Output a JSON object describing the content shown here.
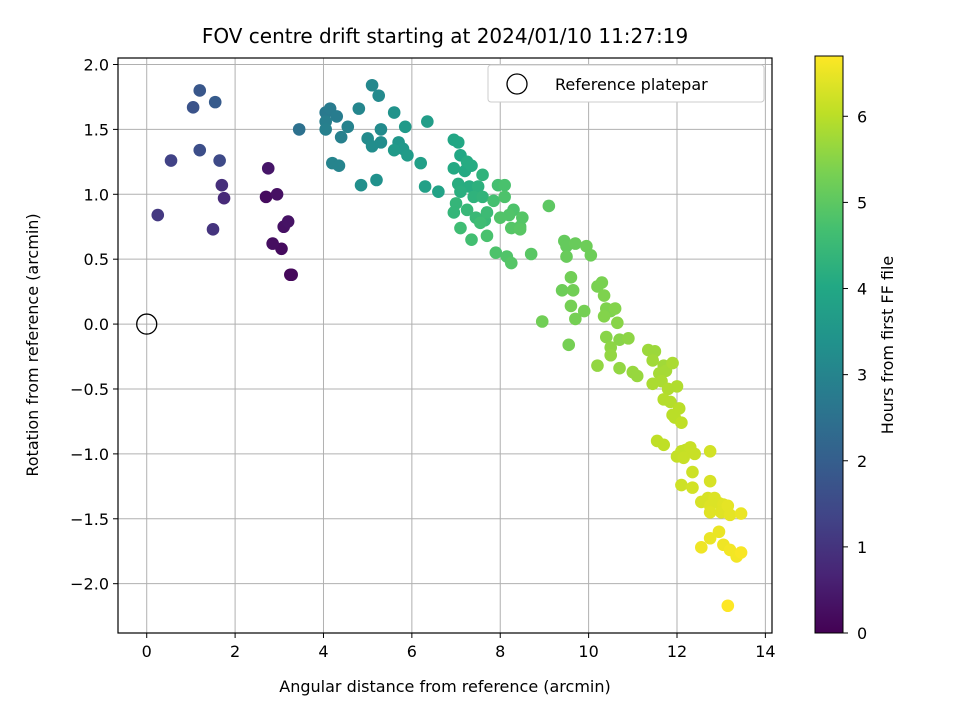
{
  "chart_data": {
    "type": "scatter",
    "title": "FOV centre drift starting at 2024/01/10 11:27:19",
    "xlabel": "Angular distance from reference (arcmin)",
    "ylabel": "Rotation from reference (arcmin)",
    "xlim": [
      -0.65,
      14.15
    ],
    "ylim": [
      -2.38,
      2.05
    ],
    "x_ticks": [
      0,
      2,
      4,
      6,
      8,
      10,
      12,
      14
    ],
    "y_ticks": [
      -2.0,
      -1.5,
      -1.0,
      -0.5,
      0.0,
      0.5,
      1.0,
      1.5,
      2.0
    ],
    "x_tick_labels": [
      "0",
      "2",
      "4",
      "6",
      "8",
      "10",
      "12",
      "14"
    ],
    "y_tick_labels": [
      "−2.0",
      "−1.5",
      "−1.0",
      "−0.5",
      "0.0",
      "0.5",
      "1.0",
      "1.5",
      "2.0"
    ],
    "grid": true,
    "legend": {
      "label": "Reference platepar",
      "placement": "top-right"
    },
    "reference_point": {
      "x": 0,
      "y": 0
    },
    "colorbar": {
      "label": "Hours from first FF file",
      "colormap": "viridis",
      "range": [
        0,
        6.7
      ],
      "ticks": [
        0,
        1,
        2,
        3,
        4,
        5,
        6
      ],
      "tick_labels": [
        "0",
        "1",
        "2",
        "3",
        "4",
        "5",
        "6"
      ]
    },
    "points": [
      [
        3.25,
        0.38,
        0.1
      ],
      [
        3.28,
        0.38,
        0.15
      ],
      [
        3.05,
        0.58,
        0.2
      ],
      [
        2.85,
        0.62,
        0.25
      ],
      [
        3.1,
        0.75,
        0.3
      ],
      [
        3.2,
        0.79,
        0.35
      ],
      [
        2.7,
        0.98,
        0.2
      ],
      [
        2.95,
        1.0,
        0.3
      ],
      [
        2.75,
        1.2,
        0.4
      ],
      [
        1.75,
        0.97,
        0.8
      ],
      [
        1.7,
        1.07,
        0.9
      ],
      [
        1.5,
        0.73,
        1.0
      ],
      [
        0.25,
        0.84,
        1.1
      ],
      [
        0.55,
        1.26,
        1.3
      ],
      [
        1.65,
        1.26,
        1.5
      ],
      [
        1.2,
        1.34,
        1.6
      ],
      [
        1.05,
        1.67,
        1.7
      ],
      [
        1.2,
        1.8,
        1.8
      ],
      [
        1.55,
        1.71,
        1.9
      ],
      [
        3.45,
        1.5,
        2.5
      ],
      [
        4.05,
        1.63,
        2.7
      ],
      [
        4.15,
        1.66,
        2.75
      ],
      [
        4.3,
        1.6,
        2.8
      ],
      [
        4.05,
        1.56,
        2.85
      ],
      [
        4.05,
        1.5,
        2.9
      ],
      [
        4.4,
        1.44,
        2.9
      ],
      [
        4.55,
        1.52,
        2.95
      ],
      [
        4.2,
        1.24,
        3.0
      ],
      [
        4.35,
        1.22,
        3.0
      ],
      [
        4.8,
        1.66,
        3.05
      ],
      [
        5.1,
        1.84,
        3.1
      ],
      [
        5.25,
        1.76,
        3.15
      ],
      [
        5.0,
        1.43,
        3.2
      ],
      [
        5.3,
        1.5,
        3.2
      ],
      [
        5.3,
        1.4,
        3.25
      ],
      [
        5.1,
        1.37,
        3.25
      ],
      [
        4.85,
        1.07,
        3.3
      ],
      [
        5.2,
        1.11,
        3.35
      ],
      [
        5.6,
        1.63,
        3.4
      ],
      [
        5.7,
        1.4,
        3.5
      ],
      [
        5.8,
        1.35,
        3.55
      ],
      [
        5.6,
        1.34,
        3.6
      ],
      [
        5.85,
        1.52,
        3.6
      ],
      [
        5.9,
        1.3,
        3.65
      ],
      [
        6.35,
        1.56,
        3.7
      ],
      [
        6.2,
        1.24,
        3.75
      ],
      [
        6.3,
        1.06,
        3.8
      ],
      [
        6.6,
        1.02,
        3.85
      ],
      [
        6.95,
        1.42,
        3.95
      ],
      [
        7.05,
        1.4,
        4.0
      ],
      [
        7.1,
        1.3,
        4.0
      ],
      [
        6.95,
        1.2,
        4.05
      ],
      [
        7.2,
        1.18,
        4.05
      ],
      [
        7.25,
        1.25,
        4.1
      ],
      [
        7.35,
        1.22,
        4.1
      ],
      [
        7.05,
        1.08,
        4.15
      ],
      [
        7.3,
        1.06,
        4.15
      ],
      [
        7.1,
        1.02,
        4.2
      ],
      [
        7.5,
        1.06,
        4.25
      ],
      [
        7.6,
        1.15,
        4.3
      ],
      [
        7.4,
        0.98,
        4.3
      ],
      [
        7.6,
        0.98,
        4.35
      ],
      [
        7.0,
        0.93,
        4.4
      ],
      [
        6.95,
        0.86,
        4.4
      ],
      [
        7.25,
        0.88,
        4.45
      ],
      [
        7.45,
        0.82,
        4.5
      ],
      [
        7.65,
        0.8,
        4.5
      ],
      [
        7.7,
        0.86,
        4.55
      ],
      [
        7.55,
        0.78,
        4.6
      ],
      [
        7.1,
        0.74,
        4.6
      ],
      [
        7.35,
        0.65,
        4.65
      ],
      [
        7.85,
        0.95,
        4.7
      ],
      [
        7.95,
        1.07,
        4.7
      ],
      [
        8.1,
        1.07,
        4.75
      ],
      [
        8.1,
        0.98,
        4.8
      ],
      [
        8.3,
        0.88,
        4.8
      ],
      [
        8.2,
        0.84,
        4.85
      ],
      [
        8.0,
        0.82,
        4.85
      ],
      [
        8.45,
        0.75,
        4.9
      ],
      [
        8.25,
        0.74,
        4.9
      ],
      [
        8.5,
        0.82,
        4.9
      ],
      [
        7.7,
        0.68,
        4.75
      ],
      [
        7.9,
        0.55,
        4.8
      ],
      [
        8.15,
        0.52,
        4.85
      ],
      [
        8.25,
        0.47,
        4.9
      ],
      [
        8.7,
        0.54,
        4.95
      ],
      [
        8.45,
        0.73,
        4.95
      ],
      [
        9.1,
        0.91,
        5.0
      ],
      [
        9.45,
        0.64,
        5.1
      ],
      [
        9.5,
        0.6,
        5.1
      ],
      [
        9.7,
        0.62,
        5.15
      ],
      [
        9.5,
        0.52,
        5.15
      ],
      [
        9.95,
        0.6,
        5.2
      ],
      [
        10.05,
        0.53,
        5.2
      ],
      [
        9.4,
        0.26,
        5.2
      ],
      [
        9.6,
        0.36,
        5.25
      ],
      [
        9.65,
        0.26,
        5.25
      ],
      [
        9.6,
        0.14,
        5.3
      ],
      [
        9.7,
        0.04,
        5.3
      ],
      [
        9.9,
        0.1,
        5.3
      ],
      [
        8.95,
        0.02,
        5.25
      ],
      [
        9.55,
        -0.16,
        5.3
      ],
      [
        10.2,
        0.29,
        5.35
      ],
      [
        10.3,
        0.32,
        5.35
      ],
      [
        10.35,
        0.22,
        5.4
      ],
      [
        10.4,
        0.12,
        5.4
      ],
      [
        10.5,
        0.1,
        5.4
      ],
      [
        10.6,
        0.12,
        5.45
      ],
      [
        10.35,
        0.06,
        5.45
      ],
      [
        10.65,
        0.01,
        5.5
      ],
      [
        10.7,
        -0.12,
        5.5
      ],
      [
        10.4,
        -0.1,
        5.5
      ],
      [
        10.9,
        -0.11,
        5.55
      ],
      [
        10.5,
        -0.18,
        5.55
      ],
      [
        10.5,
        -0.24,
        5.6
      ],
      [
        10.2,
        -0.32,
        5.6
      ],
      [
        10.7,
        -0.34,
        5.6
      ],
      [
        11.0,
        -0.37,
        5.65
      ],
      [
        11.1,
        -0.4,
        5.65
      ],
      [
        11.35,
        -0.2,
        5.7
      ],
      [
        11.5,
        -0.21,
        5.7
      ],
      [
        11.45,
        -0.28,
        5.75
      ],
      [
        11.7,
        -0.32,
        5.75
      ],
      [
        11.6,
        -0.38,
        5.8
      ],
      [
        11.75,
        -0.36,
        5.8
      ],
      [
        11.45,
        -0.46,
        5.85
      ],
      [
        11.65,
        -0.44,
        5.85
      ],
      [
        11.9,
        -0.3,
        5.85
      ],
      [
        11.8,
        -0.5,
        5.9
      ],
      [
        12.0,
        -0.48,
        5.9
      ],
      [
        11.7,
        -0.58,
        5.95
      ],
      [
        11.85,
        -0.6,
        5.95
      ],
      [
        11.9,
        -0.7,
        6.0
      ],
      [
        12.05,
        -0.65,
        6.0
      ],
      [
        11.95,
        -0.72,
        6.0
      ],
      [
        12.1,
        -0.76,
        6.05
      ],
      [
        11.55,
        -0.9,
        6.05
      ],
      [
        11.7,
        -0.93,
        6.05
      ],
      [
        12.1,
        -0.98,
        6.1
      ],
      [
        12.0,
        -1.02,
        6.1
      ],
      [
        12.2,
        -0.97,
        6.1
      ],
      [
        12.3,
        -0.95,
        6.15
      ],
      [
        12.4,
        -1.0,
        6.15
      ],
      [
        12.15,
        -1.03,
        6.15
      ],
      [
        12.35,
        -1.14,
        6.2
      ],
      [
        12.1,
        -1.24,
        6.2
      ],
      [
        12.75,
        -0.98,
        6.25
      ],
      [
        12.35,
        -1.26,
        6.25
      ],
      [
        12.75,
        -1.21,
        6.3
      ],
      [
        12.55,
        -1.37,
        6.3
      ],
      [
        12.7,
        -1.34,
        6.3
      ],
      [
        12.85,
        -1.34,
        6.35
      ],
      [
        12.75,
        -1.4,
        6.35
      ],
      [
        12.95,
        -1.38,
        6.35
      ],
      [
        13.05,
        -1.39,
        6.4
      ],
      [
        12.75,
        -1.45,
        6.4
      ],
      [
        13.0,
        -1.45,
        6.4
      ],
      [
        13.15,
        -1.4,
        6.45
      ],
      [
        13.2,
        -1.47,
        6.45
      ],
      [
        13.45,
        -1.46,
        6.5
      ],
      [
        12.95,
        -1.6,
        6.5
      ],
      [
        12.75,
        -1.65,
        6.5
      ],
      [
        13.05,
        -1.7,
        6.55
      ],
      [
        12.55,
        -1.72,
        6.55
      ],
      [
        13.2,
        -1.74,
        6.6
      ],
      [
        13.35,
        -1.79,
        6.6
      ],
      [
        13.45,
        -1.76,
        6.65
      ],
      [
        13.15,
        -2.17,
        6.7
      ]
    ]
  }
}
